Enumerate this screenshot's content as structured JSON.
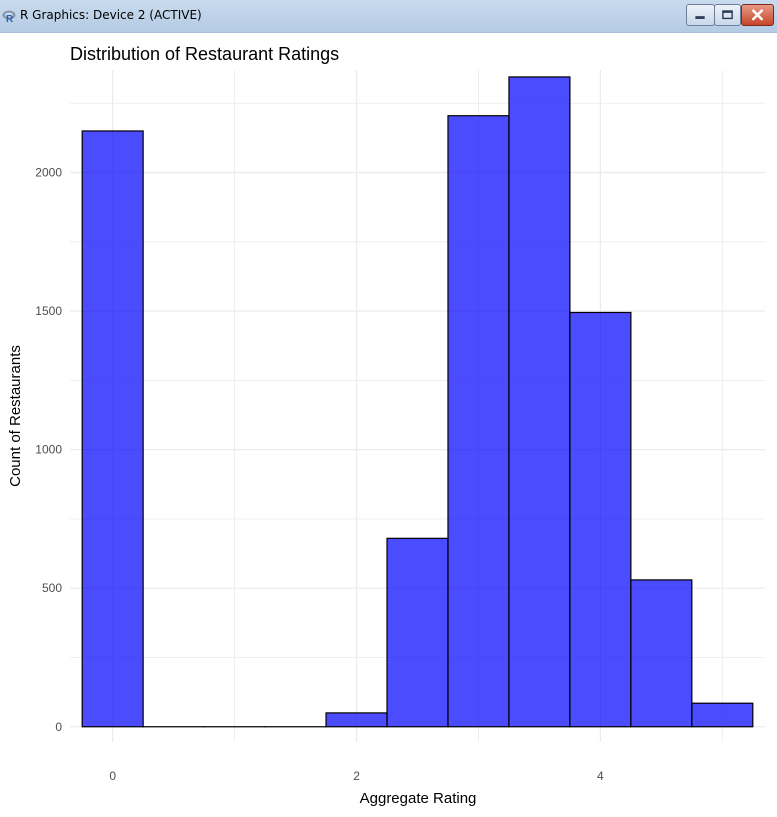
{
  "window": {
    "title": "R Graphics: Device 2 (ACTIVE)",
    "buttons": [
      "minimize",
      "maximize",
      "close"
    ]
  },
  "chart_data": {
    "type": "bar",
    "subtype": "histogram",
    "title": "Distribution of Restaurant Ratings",
    "xlabel": "Aggregate Rating",
    "ylabel": "Count of Restaurants",
    "bin_width": 0.5,
    "bins": [
      {
        "center": 0.0,
        "count": 2150
      },
      {
        "center": 0.5,
        "count": 0
      },
      {
        "center": 1.0,
        "count": 0
      },
      {
        "center": 1.5,
        "count": 0
      },
      {
        "center": 2.0,
        "count": 50
      },
      {
        "center": 2.5,
        "count": 680
      },
      {
        "center": 3.0,
        "count": 2205
      },
      {
        "center": 3.5,
        "count": 2345
      },
      {
        "center": 4.0,
        "count": 1495
      },
      {
        "center": 4.5,
        "count": 530
      },
      {
        "center": 5.0,
        "count": 85
      }
    ],
    "x_ticks": [
      0,
      2,
      4
    ],
    "y_ticks": [
      0,
      500,
      1000,
      1500,
      2000
    ],
    "xlim": [
      -0.35,
      5.35
    ],
    "ylim": [
      -55,
      2370
    ],
    "grid": true,
    "fill_color": "#0000ff",
    "fill_opacity": 0.7,
    "outline_color": "#000000",
    "grid_color": "#ebebeb",
    "legend": "none"
  }
}
